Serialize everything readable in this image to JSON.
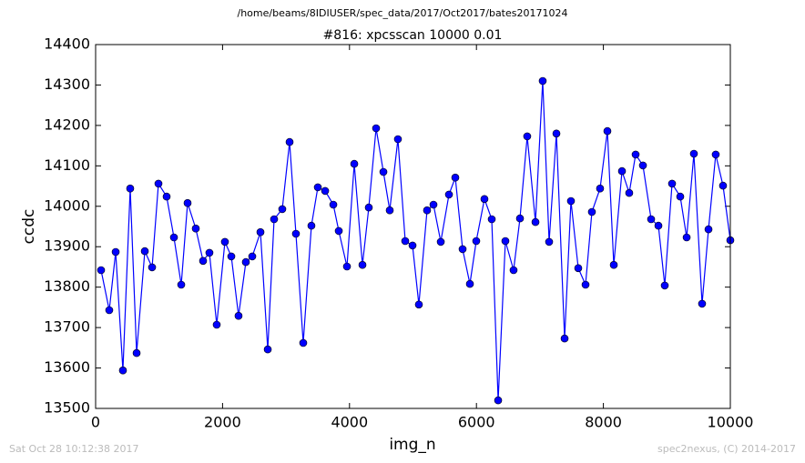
{
  "chart_data": {
    "type": "line",
    "suptitle": "/home/beams/8IDIUSER/spec_data/2017/Oct2017/bates20171024",
    "title": "#816: xpcsscan 10000 0.01",
    "x_label": "img_n",
    "y_label": "ccdc",
    "footer_left": "Sat Oct 28 10:12:38 2017",
    "footer_right": "spec2nexus, (C) 2014-2017",
    "xlim": [
      0,
      10000
    ],
    "xticks": [
      0,
      2000,
      4000,
      6000,
      8000,
      10000
    ],
    "ylim": [
      13500,
      14400
    ],
    "yticks": [
      13500,
      13600,
      13700,
      13800,
      13900,
      14000,
      14100,
      14200,
      14300,
      14400
    ],
    "grid": false,
    "series": [
      {
        "color": "#0000ff",
        "x": [
          86,
          215,
          316,
          430,
          545,
          646,
          775,
          890,
          990,
          1119,
          1234,
          1349,
          1449,
          1578,
          1693,
          1793,
          1908,
          2037,
          2138,
          2252,
          2367,
          2468,
          2597,
          2712,
          2812,
          2941,
          3056,
          3156,
          3271,
          3400,
          3501,
          3616,
          3745,
          3831,
          3960,
          4075,
          4204,
          4304,
          4419,
          4534,
          4634,
          4763,
          4878,
          4993,
          5093,
          5222,
          5323,
          5438,
          5567,
          5667,
          5782,
          5897,
          5997,
          6126,
          6241,
          6342,
          6456,
          6585,
          6686,
          6800,
          6930,
          7044,
          7145,
          7260,
          7389,
          7489,
          7604,
          7719,
          7819,
          7948,
          8063,
          8164,
          8293,
          8407,
          8508,
          8623,
          8752,
          8867,
          8967,
          9082,
          9211,
          9312,
          9426,
          9555,
          9656,
          9770,
          9885,
          10000
        ],
        "values": [
          13842,
          13743,
          13887,
          13594,
          14044,
          13637,
          13889,
          13849,
          14056,
          14024,
          13923,
          13806,
          14008,
          13945,
          13865,
          13885,
          13707,
          13912,
          13876,
          13729,
          13862,
          13876,
          13936,
          13646,
          13968,
          13993,
          14159,
          13932,
          13662,
          13952,
          14047,
          14038,
          14004,
          13939,
          13851,
          14105,
          13855,
          13997,
          14193,
          14085,
          13990,
          14166,
          13914,
          13903,
          13757,
          13990,
          14004,
          13912,
          14029,
          14071,
          13894,
          13808,
          13914,
          14018,
          13968,
          13520,
          13914,
          13842,
          13970,
          14173,
          13961,
          14310,
          13912,
          14180,
          13673,
          14013,
          13847,
          13806,
          13986,
          14044,
          14186,
          13855,
          14087,
          14033,
          14128,
          14101,
          13968,
          13952,
          13804,
          14056,
          14024,
          13923,
          14130,
          13759,
          13943,
          14128,
          14051,
          13916
        ]
      }
    ]
  }
}
